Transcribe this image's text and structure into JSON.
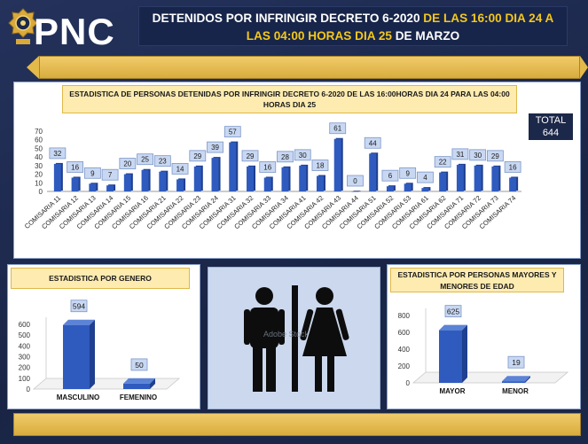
{
  "header": {
    "brand": "PNC",
    "title_line1_white": "DETENIDOS POR INFRINGIR DECRETO 6-2020",
    "title_line1_yellow": " DE LAS 16:00 DIA 24 A",
    "title_line2_yellow": "LAS 04:00 HORAS DIA 25",
    "title_line2_white": " DE MARZO"
  },
  "total": {
    "label": "TOTAL",
    "value": "644"
  },
  "colors": {
    "bar": "#2f5bbf",
    "bar_dark": "#1f3f8f",
    "gold": "#e3b94a",
    "navy": "#1c2849"
  },
  "chart_data": [
    {
      "type": "bar",
      "title": "ESTADISTICA DE PERSONAS DETENIDAS POR INFRINGIR DECRETO 6-2020 DE LAS 16:00HORAS DIA 24 PARA LAS 04:00 HORAS DIA 25",
      "categories": [
        "COMISARIA 11",
        "COMISARIA 12",
        "COMISARIA 13",
        "COMISARIA 14",
        "COMISARIA 15",
        "COMISARIA 16",
        "COMISARIA 21",
        "COMISARIA 22",
        "COMISARIA 23",
        "COMISARIA 24",
        "COMISARIA 31",
        "COMISARIA 32",
        "COMISARIA 33",
        "COMISARIA 34",
        "COMISARIA 41",
        "COMISARIA 42",
        "COMISARIA 43",
        "COMISARIA 44",
        "COMISARIA 51",
        "COMISARIA 52",
        "COMISARIA 53",
        "COMISARIA 61",
        "COMISARIA 62",
        "COMISARIA 71",
        "COMISARIA 72",
        "COMISARIA 73",
        "COMISARIA 74"
      ],
      "values": [
        32,
        16,
        9,
        7,
        20,
        25,
        23,
        14,
        29,
        39,
        57,
        29,
        16,
        28,
        30,
        18,
        61,
        0,
        44,
        6,
        9,
        4,
        22,
        31,
        30,
        29,
        16
      ],
      "yticks": [
        0,
        10,
        20,
        30,
        40,
        50,
        60,
        70
      ],
      "ylim": [
        0,
        70
      ]
    },
    {
      "type": "bar",
      "title": "ESTADISTICA POR GENERO",
      "categories": [
        "MASCULINO",
        "FEMENINO"
      ],
      "values": [
        594,
        50
      ],
      "yticks": [
        0,
        100,
        200,
        300,
        400,
        500,
        600
      ],
      "ylim": [
        0,
        600
      ]
    },
    {
      "type": "bar",
      "title": "ESTADISTICA POR PERSONAS MAYORES Y MENORES DE EDAD",
      "categories": [
        "MAYOR",
        "MENOR"
      ],
      "values": [
        625,
        19
      ],
      "yticks": [
        0,
        200,
        400,
        600,
        800
      ],
      "ylim": [
        0,
        800
      ]
    }
  ],
  "image_panel": {
    "icon": "restroom-man-woman-icon",
    "watermark": "Adobe Stock"
  }
}
